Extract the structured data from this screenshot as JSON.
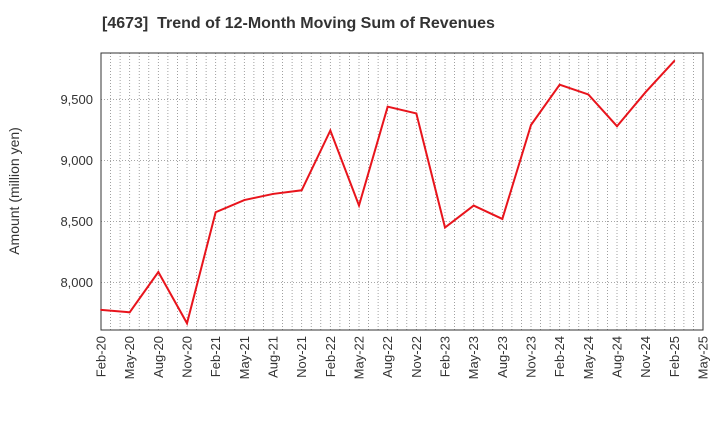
{
  "chart_data": {
    "type": "line",
    "title": "[4673]  Trend of 12-Month Moving Sum of Revenues",
    "xlabel": "",
    "ylabel": "Amount (million yen)",
    "x_tick_labels": [
      "Feb-20",
      "May-20",
      "Aug-20",
      "Nov-20",
      "Feb-21",
      "May-21",
      "Aug-21",
      "Nov-21",
      "Feb-22",
      "May-22",
      "Aug-22",
      "Nov-22",
      "Feb-23",
      "May-23",
      "Aug-23",
      "Nov-23",
      "Feb-24",
      "May-24",
      "Aug-24",
      "Nov-24",
      "Feb-25",
      "May-25"
    ],
    "y_ticks": [
      8000,
      8500,
      9000,
      9500
    ],
    "y_tick_labels": [
      "8,000",
      "8,500",
      "9,000",
      "9,500"
    ],
    "ylim": [
      7610,
      9880
    ],
    "grid": true,
    "series": [
      {
        "name": "",
        "color": "#e8141c",
        "x": [
          "Feb-20",
          "May-20",
          "Aug-20",
          "Nov-20",
          "Feb-21",
          "May-21",
          "Aug-21",
          "Nov-21",
          "Feb-22",
          "May-22",
          "Aug-22",
          "Nov-22",
          "Feb-23",
          "May-23",
          "Aug-23",
          "Nov-23",
          "Feb-24",
          "May-24",
          "Aug-24",
          "Nov-24",
          "Feb-25"
        ],
        "values": [
          7775,
          7755,
          8085,
          7665,
          8575,
          8675,
          8725,
          8755,
          9245,
          8630,
          9440,
          9385,
          8450,
          8630,
          8520,
          9290,
          9620,
          9540,
          9280,
          9560,
          9815
        ]
      }
    ]
  }
}
